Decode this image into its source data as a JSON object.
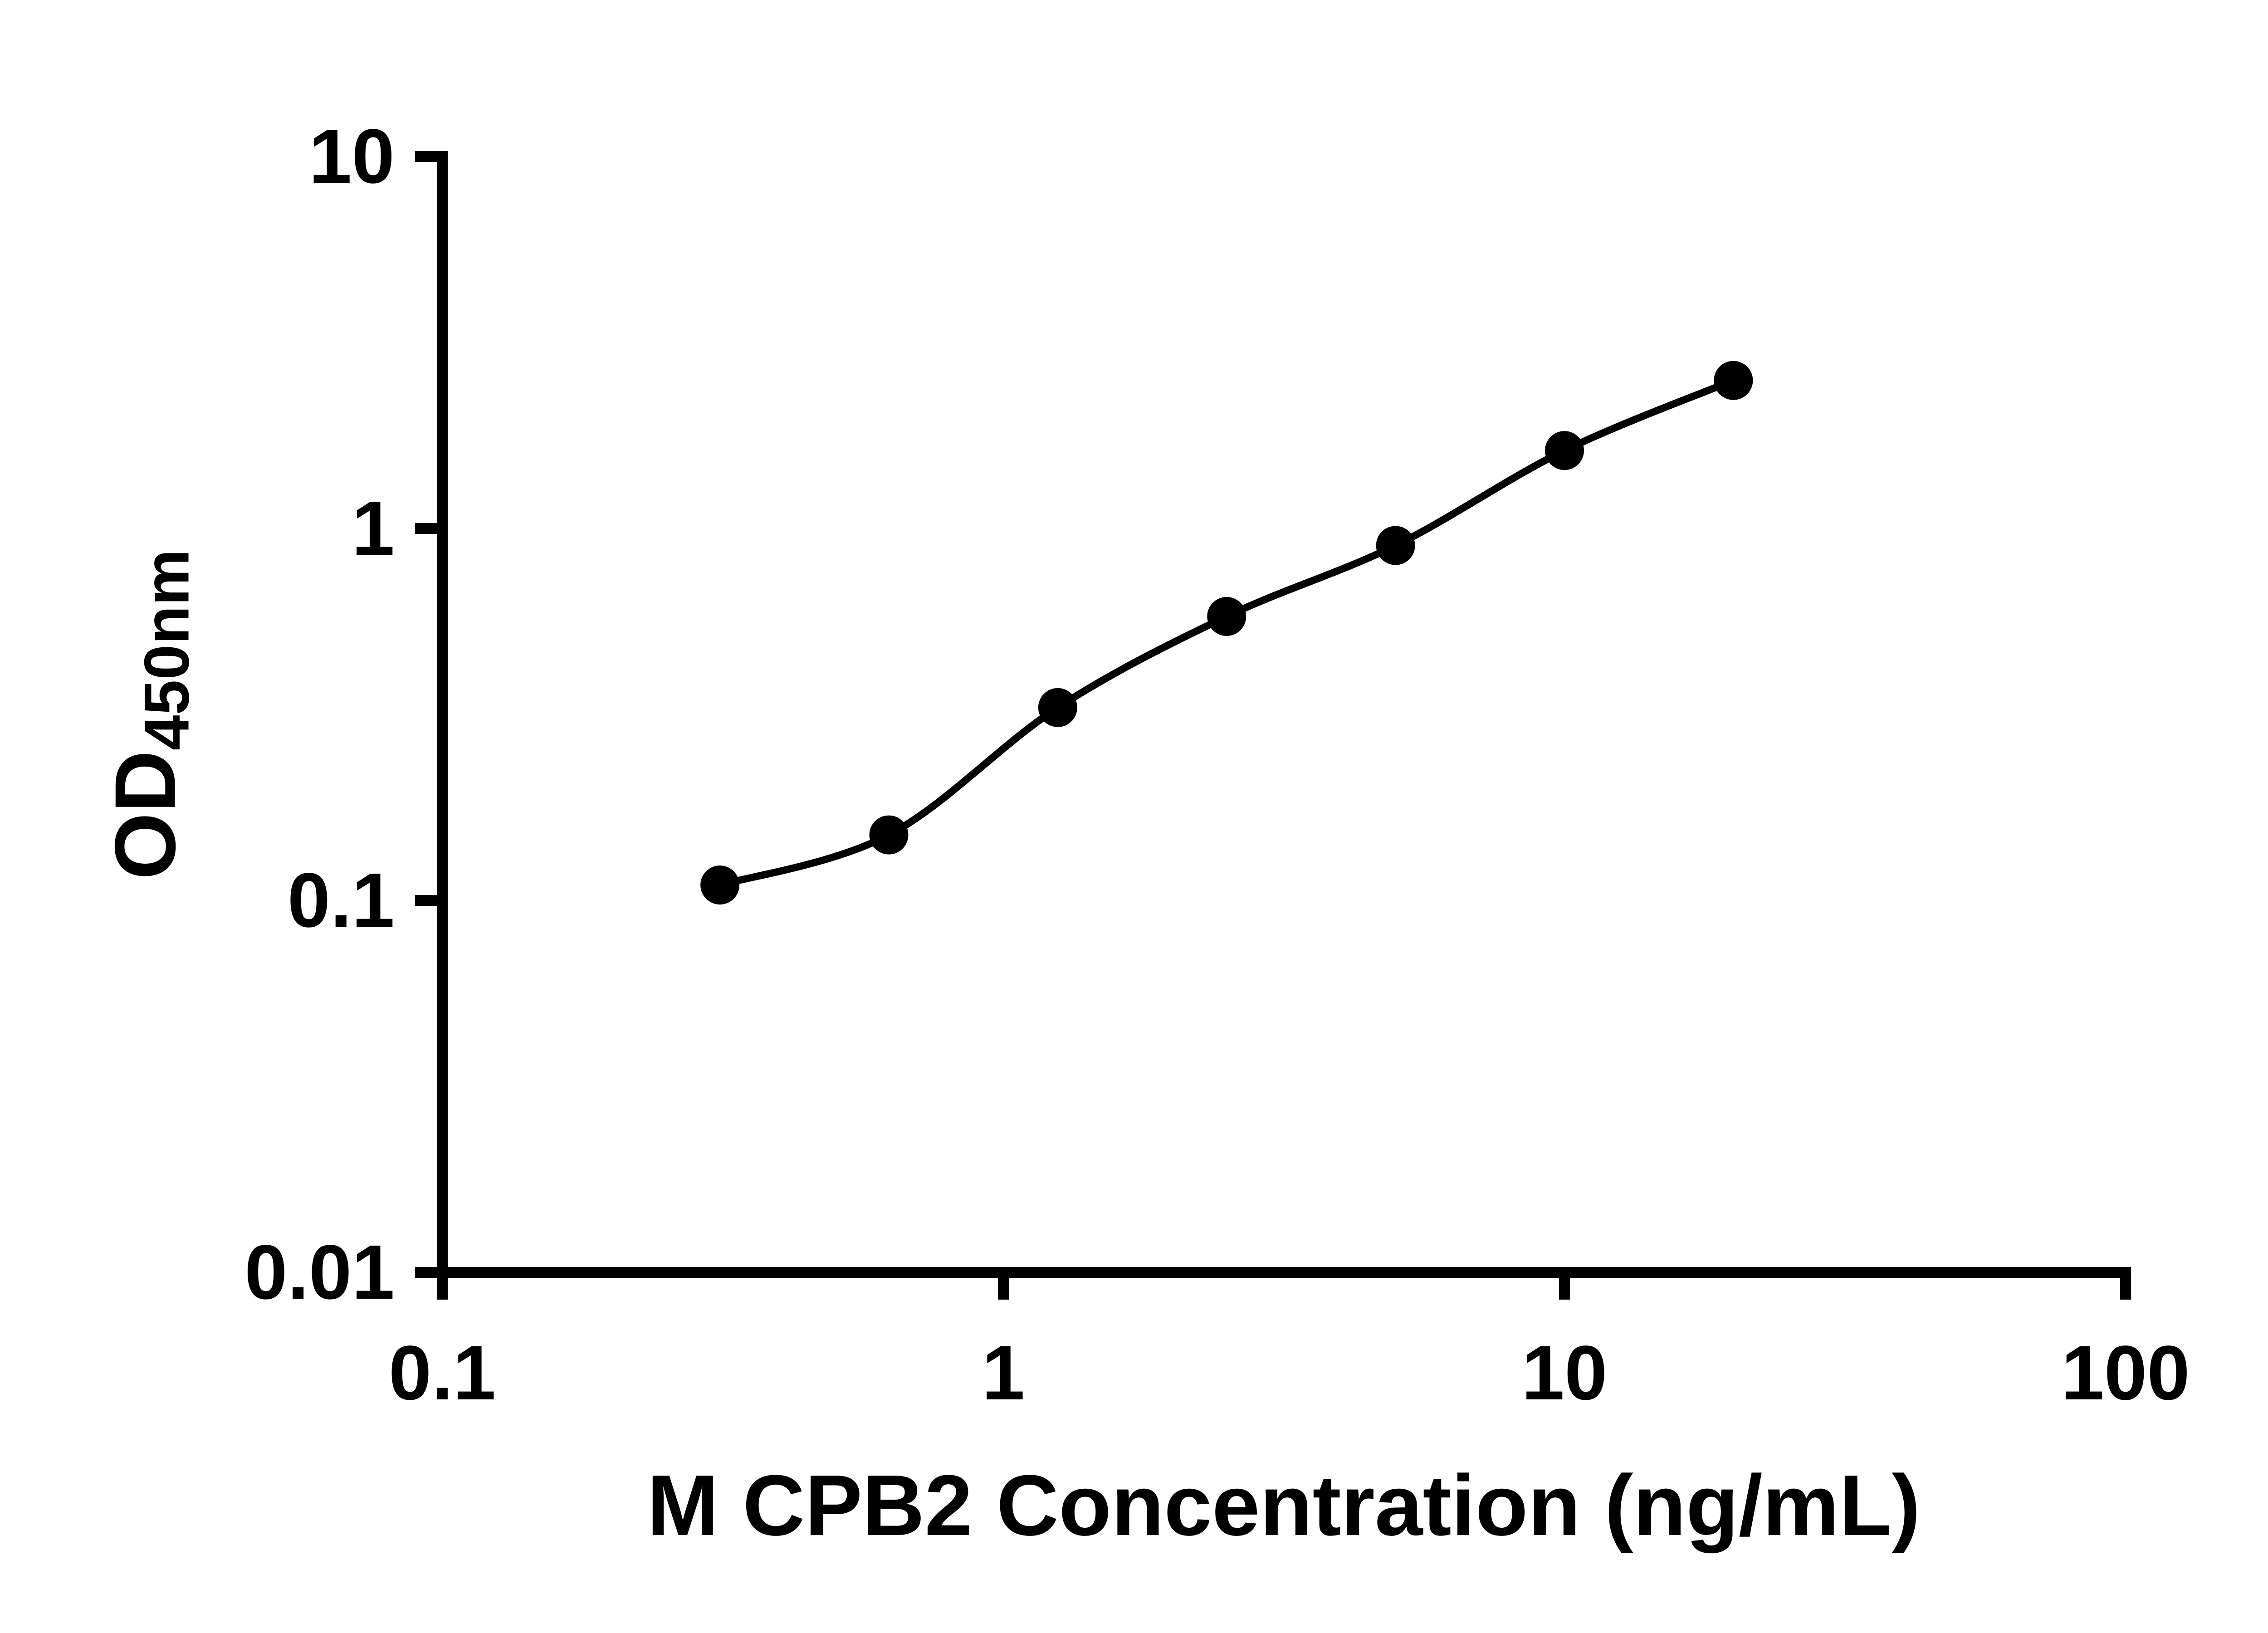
{
  "page": {
    "background": "#ffffff"
  },
  "chart_data": {
    "type": "scatter",
    "subtype": "standard-curve-with-fit-line",
    "title": "",
    "xlabel": "M CPB2 Concentration (ng/mL)",
    "ylabel": "OD",
    "ylabel_subscript": "450nm",
    "x_scale": "log10",
    "y_scale": "log10",
    "xlim": [
      0.1,
      100
    ],
    "ylim": [
      0.01,
      10
    ],
    "grid": false,
    "legend": "none",
    "x_ticks": [
      {
        "value": 0.1,
        "label": "0.1"
      },
      {
        "value": 1,
        "label": "1"
      },
      {
        "value": 10,
        "label": "10"
      },
      {
        "value": 100,
        "label": "100"
      }
    ],
    "y_ticks": [
      {
        "value": 0.01,
        "label": "0.01"
      },
      {
        "value": 0.1,
        "label": "0.1"
      },
      {
        "value": 1,
        "label": "1"
      },
      {
        "value": 10,
        "label": "10"
      }
    ],
    "points": [
      {
        "x": 0.3125,
        "y": 0.11
      },
      {
        "x": 0.625,
        "y": 0.15
      },
      {
        "x": 1.25,
        "y": 0.33
      },
      {
        "x": 2.5,
        "y": 0.58
      },
      {
        "x": 5,
        "y": 0.9
      },
      {
        "x": 10,
        "y": 1.62
      },
      {
        "x": 20,
        "y": 2.5
      }
    ],
    "marker_color": "#000000",
    "line_color": "#000000",
    "axis_color": "#000000"
  }
}
